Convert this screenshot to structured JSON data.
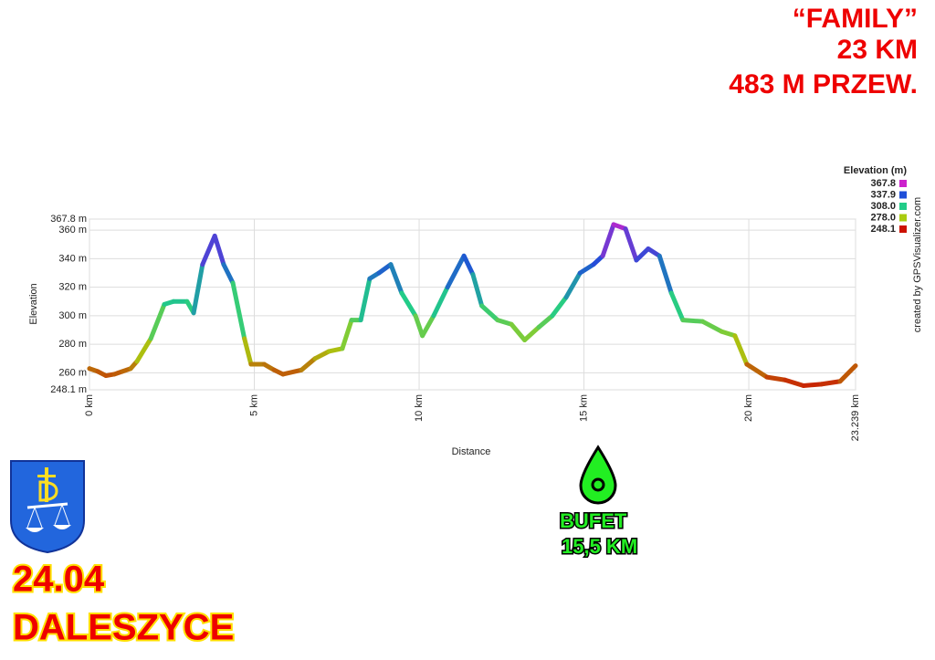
{
  "header": [
    "“FAMILY”",
    "23 KM",
    "483 M PRZEW."
  ],
  "chart_data": {
    "type": "line",
    "x_label": "Distance",
    "y_label": "Elevation",
    "credit": "created by GPSVisualizer.com",
    "color_scale": {
      "title": "Elevation (m)",
      "stops": [
        {
          "value": 367.8,
          "color": "#cc22cc"
        },
        {
          "value": 337.9,
          "color": "#1f4fd8"
        },
        {
          "value": {
            "value": 308,
            "label": "308.0"
          },
          "color": "#22cc88"
        },
        {
          "value": {
            "value": 278,
            "label": "278.0"
          },
          "color": "#aacc11"
        },
        {
          "value": 248.1,
          "color": "#cc1100"
        }
      ]
    },
    "x": [
      0,
      0.25,
      0.5,
      0.75,
      1.0,
      1.25,
      1.44,
      1.86,
      2.27,
      2.55,
      2.96,
      3.16,
      3.43,
      3.8,
      4.07,
      4.35,
      4.7,
      4.9,
      5.3,
      5.6,
      5.87,
      6.43,
      6.84,
      7.26,
      7.67,
      7.95,
      8.23,
      8.5,
      8.78,
      9.14,
      9.47,
      9.89,
      10.1,
      10.44,
      10.86,
      11.36,
      11.63,
      11.9,
      12.38,
      12.8,
      13.2,
      13.63,
      14.04,
      14.46,
      14.88,
      15.29,
      15.57,
      15.9,
      16.26,
      16.59,
      16.95,
      17.29,
      17.65,
      18.0,
      18.6,
      19.17,
      19.58,
      19.94,
      20.55,
      21.1,
      21.66,
      22.2,
      22.77,
      23.239
    ],
    "values": [
      263,
      261,
      258,
      259,
      261,
      263,
      268,
      284,
      308,
      310,
      310,
      302,
      336,
      356,
      336,
      323,
      284,
      266,
      266,
      262,
      259,
      262,
      270,
      275,
      277,
      297,
      297,
      326,
      330,
      336,
      316,
      300,
      286,
      300,
      320,
      342,
      329,
      307,
      297,
      294,
      283,
      292,
      300,
      313,
      330,
      336,
      342,
      364,
      361,
      339,
      347,
      342,
      316,
      297,
      296,
      289,
      286,
      266,
      257,
      255,
      251,
      252,
      254,
      265
    ],
    "xlim": [
      0,
      23.239
    ],
    "xticks": [
      {
        "value": 0,
        "label": "0 km"
      },
      {
        "value": 5,
        "label": "5 km"
      },
      {
        "value": 10,
        "label": "10 km"
      },
      {
        "value": 15,
        "label": "15 km"
      },
      {
        "value": 20,
        "label": "20 km"
      },
      {
        "value": 23.239,
        "label": "23.239 km"
      }
    ],
    "ylim": [
      248.1,
      367.8
    ],
    "yticks": [
      {
        "value": 248.1,
        "label": "248.1 m"
      },
      {
        "value": 260,
        "label": "260 m"
      },
      {
        "value": 280,
        "label": "280 m"
      },
      {
        "value": 300,
        "label": "300 m"
      },
      {
        "value": 320,
        "label": "320 m"
      },
      {
        "value": 340,
        "label": "340 m"
      },
      {
        "value": 360,
        "label": "360 m"
      },
      {
        "value": 367.8,
        "label": "367.8 m"
      }
    ],
    "grid": true
  },
  "aid_station": {
    "label": "BUFET",
    "distance": "15,5 KM"
  },
  "event": {
    "date": "24.04",
    "place": "DALESZYCE"
  }
}
